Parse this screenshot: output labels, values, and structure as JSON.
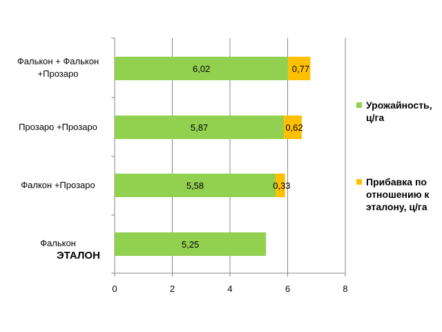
{
  "chart_data": {
    "type": "bar",
    "orientation": "horizontal",
    "stacked": true,
    "categories": [
      {
        "label": "Фалькон + Фалькон\n+Прозаро",
        "sub": ""
      },
      {
        "label": "Прозаро +Прозаро",
        "sub": ""
      },
      {
        "label": "Фалкон +Прозаро",
        "sub": ""
      },
      {
        "label": "Фалькон",
        "sub": "ЭТАЛОН"
      }
    ],
    "series": [
      {
        "name": "Урожайность, ц/га",
        "color": "#92d050",
        "values": [
          6.02,
          5.87,
          5.58,
          5.25
        ],
        "labels": [
          "6,02",
          "5,87",
          "5,58",
          "5,25"
        ]
      },
      {
        "name": "Прибавка по отношению к эталону, ц/га",
        "color": "#ffc000",
        "values": [
          0.77,
          0.62,
          0.33,
          null
        ],
        "labels": [
          "0,77",
          "0,62",
          "0,33",
          ""
        ]
      }
    ],
    "xlim": [
      0,
      8
    ],
    "xticks": [
      "0",
      "2",
      "4",
      "6",
      "8"
    ],
    "grid": "vertical",
    "legend_position": "right"
  }
}
